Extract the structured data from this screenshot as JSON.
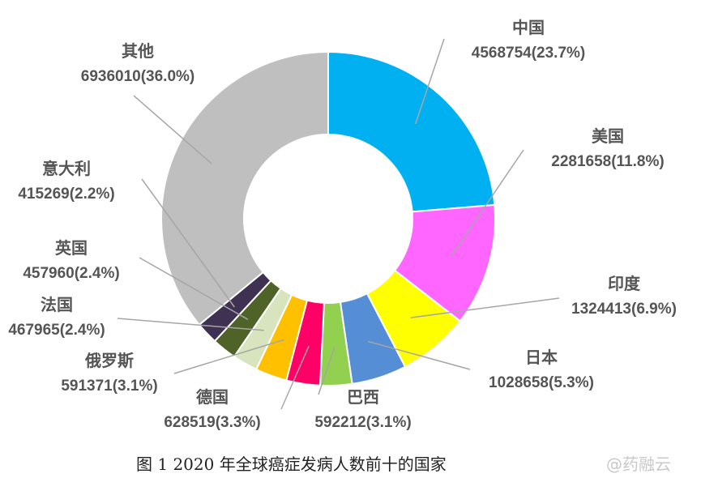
{
  "chart_data": {
    "type": "pie",
    "variant": "donut",
    "categories": [
      "中国",
      "美国",
      "印度",
      "日本",
      "巴西",
      "德国",
      "俄罗斯",
      "法国",
      "英国",
      "意大利",
      "其他"
    ],
    "values": [
      4568754,
      2281658,
      1324413,
      1028658,
      592212,
      628519,
      591371,
      467965,
      457960,
      415269,
      6936010
    ],
    "value_labels": [
      "4568754(23.7%)",
      "2281658(11.8%)",
      "1324413(6.9%)",
      "1028658(5.3%)",
      "592212(3.1%)",
      "628519(3.3%)",
      "591371(3.1%)",
      "467965(2.4%)",
      "457960(2.4%)",
      "415269(2.2%)",
      "6936010(36.0%)"
    ],
    "colors": [
      "#00b0f0",
      "#ff66ff",
      "#ffff00",
      "#558ed5",
      "#92d050",
      "#ff0066",
      "#ffc000",
      "#d7e4bd",
      "#4f6228",
      "#3f3151",
      "#bfbfbf"
    ],
    "start_angle": "12 o'clock",
    "direction": "clockwise",
    "legend": "none"
  },
  "caption": "图 1 2020 年全球癌症发病人数前十的国家",
  "watermark": "@药融云"
}
